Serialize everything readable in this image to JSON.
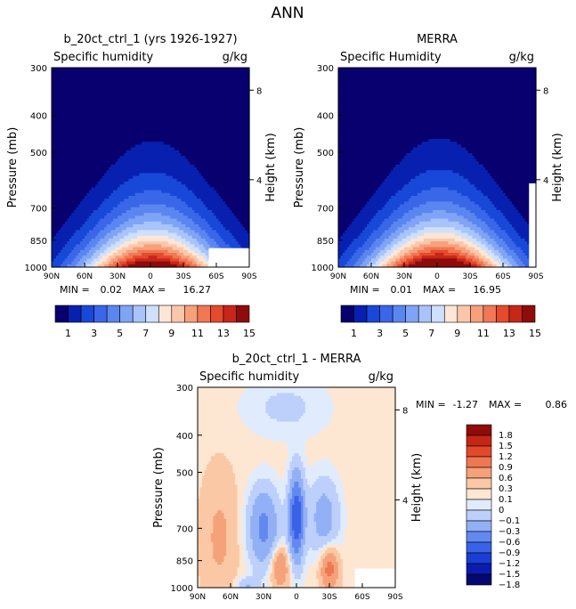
{
  "figure_title": "ANN",
  "colors": {
    "seq": [
      "#08006e",
      "#0820b0",
      "#1848d8",
      "#3a66e8",
      "#5a86f0",
      "#7fa4f6",
      "#a8c4fa",
      "#cfe0fd",
      "#fde6d6",
      "#fbc7aa",
      "#f7a07c",
      "#f07855",
      "#e54a2c",
      "#c8261a",
      "#8e0c0a"
    ],
    "div": [
      "#05086e",
      "#0a1cb0",
      "#1a3ed6",
      "#3a62e8",
      "#6289f0",
      "#92b0f5",
      "#bcd0fb",
      "#e0ecfd",
      "#fde6d2",
      "#fbc8a6",
      "#f5a27a",
      "#ee7852",
      "#e2492a",
      "#c62616",
      "#900b08"
    ]
  },
  "chart_data": [
    {
      "type": "contour",
      "case_title": "b_20ct_ctrl_1 (yrs 1926-1927)",
      "variable": "Specific humidity",
      "units": "g/kg",
      "ylabel": "Pressure (mb)",
      "ylabel2": "Height (km)",
      "y_ticks": [
        "300",
        "400",
        "500",
        "700",
        "850",
        "1000"
      ],
      "y2_ticks": [
        "8",
        "4"
      ],
      "x_ticks": [
        "90N",
        "60N",
        "30N",
        "0",
        "30S",
        "60S",
        "90S"
      ],
      "stats": {
        "min_label": "MIN =",
        "min": "0.02",
        "max_label": "MAX =",
        "max": "16.27"
      },
      "peak": 16.27,
      "contour_levels": [
        1,
        2,
        3,
        4,
        5,
        6,
        7,
        8,
        9,
        10,
        11,
        12,
        13,
        14,
        15
      ],
      "colorbar_labels": [
        "1",
        "3",
        "5",
        "7",
        "9",
        "11",
        "13",
        "15"
      ]
    },
    {
      "type": "contour",
      "case_title": "MERRA",
      "variable": "Specific Humidity",
      "units": "g/kg",
      "ylabel": "Pressure (mb)",
      "ylabel2": "Height (km)",
      "y_ticks": [
        "300",
        "400",
        "500",
        "700",
        "850",
        "1000"
      ],
      "y2_ticks": [
        "8",
        "4"
      ],
      "x_ticks": [
        "90N",
        "60N",
        "30N",
        "0",
        "30S",
        "60S",
        "90S"
      ],
      "stats": {
        "min_label": "MIN =",
        "min": "0.01",
        "max_label": "MAX =",
        "max": "16.95"
      },
      "peak": 16.95,
      "contour_levels": [
        1,
        2,
        3,
        4,
        5,
        6,
        7,
        8,
        9,
        10,
        11,
        12,
        13,
        14,
        15
      ],
      "colorbar_labels": [
        "1",
        "3",
        "5",
        "7",
        "9",
        "11",
        "13",
        "15"
      ]
    },
    {
      "type": "contour",
      "case_title": "b_20ct_ctrl_1 - MERRA",
      "variable": "Specific humidity",
      "units": "g/kg",
      "ylabel": "Pressure (mb)",
      "ylabel2": "Height (km)",
      "y_ticks": [
        "300",
        "400",
        "500",
        "700",
        "850",
        "1000"
      ],
      "y2_ticks": [
        "8",
        "4"
      ],
      "x_ticks": [
        "90N",
        "60N",
        "30N",
        "0",
        "30S",
        "60S",
        "90S"
      ],
      "stats": {
        "min_label": "MIN =",
        "min": "-1.27",
        "max_label": "MAX =",
        "max": "0.86"
      },
      "contour_levels": [
        -1.8,
        -1.5,
        -1.2,
        -0.9,
        -0.6,
        -0.3,
        -0.1,
        0,
        0.1,
        0.3,
        0.6,
        0.9,
        1.2,
        1.5,
        1.8
      ],
      "colorbar_labels": [
        "1.8",
        "1.5",
        "1.2",
        "0.9",
        "0.6",
        "0.3",
        "0.1",
        "0",
        "−0.1",
        "−0.3",
        "−0.6",
        "−0.9",
        "−1.2",
        "−1.5",
        "−1.8"
      ]
    }
  ]
}
